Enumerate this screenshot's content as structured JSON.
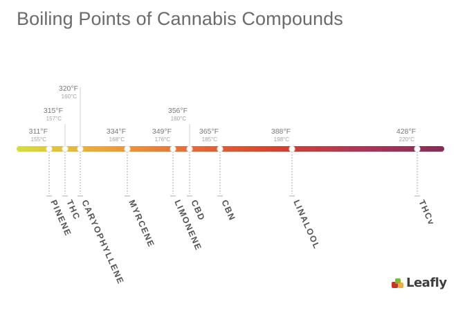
{
  "title": "Boiling Points of Cannabis Compounds",
  "brand": {
    "name": "Leafly",
    "colors": [
      "#c9342a",
      "#7fb132",
      "#e7a528",
      "#3d3d3d"
    ]
  },
  "timeline": {
    "gradient": [
      "#d4df3f",
      "#f0a43a",
      "#ea6b38",
      "#d7432d",
      "#b03556",
      "#8a2b55"
    ],
    "compounds": [
      {
        "name": "PINENE",
        "f": "311°F",
        "c": "155°C"
      },
      {
        "name": "THC",
        "f": "315°F",
        "c": "157°C"
      },
      {
        "name": "CARYOPHYLLENE",
        "f": "320°F",
        "c": "160°C"
      },
      {
        "name": "MYRCENE",
        "f": "334°F",
        "c": "168°C"
      },
      {
        "name": "LIMONENE",
        "f": "349°F",
        "c": "176°C"
      },
      {
        "name": "CBD",
        "f": "356°F",
        "c": "180°C"
      },
      {
        "name": "CBN",
        "f": "365°F",
        "c": "185°C"
      },
      {
        "name": "LINALOOL",
        "f": "388°F",
        "c": "198°C"
      },
      {
        "name": "THCv",
        "f": "428°F",
        "c": "220°C"
      }
    ]
  }
}
